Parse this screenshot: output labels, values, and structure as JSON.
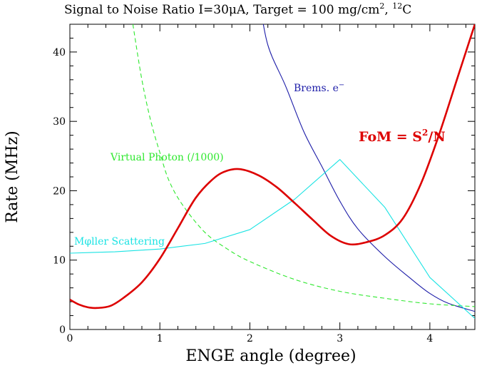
{
  "chart_data": {
    "type": "line",
    "title_parts": {
      "lead": "Signal to Noise Ratio  I=30",
      "mu": "μ",
      "after_mu": "A, Target = 100 mg/cm",
      "sup1": "2",
      "comma": ", ",
      "sup2": "12",
      "tail": "C"
    },
    "xlabel": "ENGE angle (degree)",
    "ylabel": "Rate (MHz)",
    "xlim": [
      0,
      4.5
    ],
    "ylim": [
      0,
      44
    ],
    "xticks": [
      "0",
      "1",
      "2",
      "3",
      "4"
    ],
    "yticks": [
      "0",
      "10",
      "20",
      "30",
      "40"
    ],
    "grid": false,
    "series": [
      {
        "name": "Brems. e⁻",
        "label_main": "Brems. e",
        "label_sup": "−",
        "color": "#1c1ca8",
        "style": "solid",
        "x": [
          2.1,
          2.2,
          2.4,
          2.6,
          2.8,
          3.0,
          3.2,
          3.5,
          3.8,
          4.0,
          4.2,
          4.5
        ],
        "y": [
          48,
          41,
          35,
          28.5,
          23.5,
          18.5,
          14.5,
          10.5,
          7.2,
          5.2,
          3.8,
          2.6
        ]
      },
      {
        "name": "Virtual Photon (/1000)",
        "label_main": "Virtual Photon (/1000)",
        "color": "#2ee82e",
        "style": "dashed",
        "x": [
          0.7,
          0.8,
          0.9,
          1.0,
          1.1,
          1.25,
          1.5,
          1.75,
          2.0,
          2.5,
          3.0,
          3.5,
          4.0,
          4.5
        ],
        "y": [
          44,
          36,
          30,
          25.5,
          21.5,
          18,
          14,
          11.6,
          9.8,
          7.2,
          5.5,
          4.5,
          3.7,
          3.3
        ]
      },
      {
        "name": "Mφller Scattering",
        "label_main": "Mφller Scattering",
        "color": "#19e3e3",
        "style": "solid",
        "x": [
          0,
          0.5,
          1.0,
          1.5,
          2.0,
          2.5,
          3.0,
          3.5,
          4.0,
          4.5
        ],
        "y": [
          11.0,
          11.2,
          11.6,
          12.4,
          14.4,
          18.8,
          24.5,
          17.6,
          7.5,
          1.6
        ]
      },
      {
        "name": "FoM = S²/N",
        "label_main": "FoM = S",
        "label_sup": "2",
        "label_tail": "/N",
        "color": "#dd0000",
        "style": "solid-thick",
        "x": [
          0,
          0.1,
          0.2,
          0.3,
          0.45,
          0.6,
          0.8,
          1.0,
          1.2,
          1.4,
          1.6,
          1.75,
          1.9,
          2.1,
          2.3,
          2.5,
          2.7,
          2.9,
          3.1,
          3.3,
          3.5,
          3.7,
          3.9,
          4.1,
          4.3,
          4.5
        ],
        "y": [
          4.3,
          3.6,
          3.2,
          3.1,
          3.4,
          4.6,
          6.8,
          10.2,
          14.6,
          19.0,
          21.8,
          22.9,
          23.1,
          22.2,
          20.5,
          18.2,
          15.8,
          13.5,
          12.3,
          12.6,
          13.6,
          16.0,
          21.0,
          28.0,
          36.0,
          44.0
        ]
      }
    ]
  }
}
